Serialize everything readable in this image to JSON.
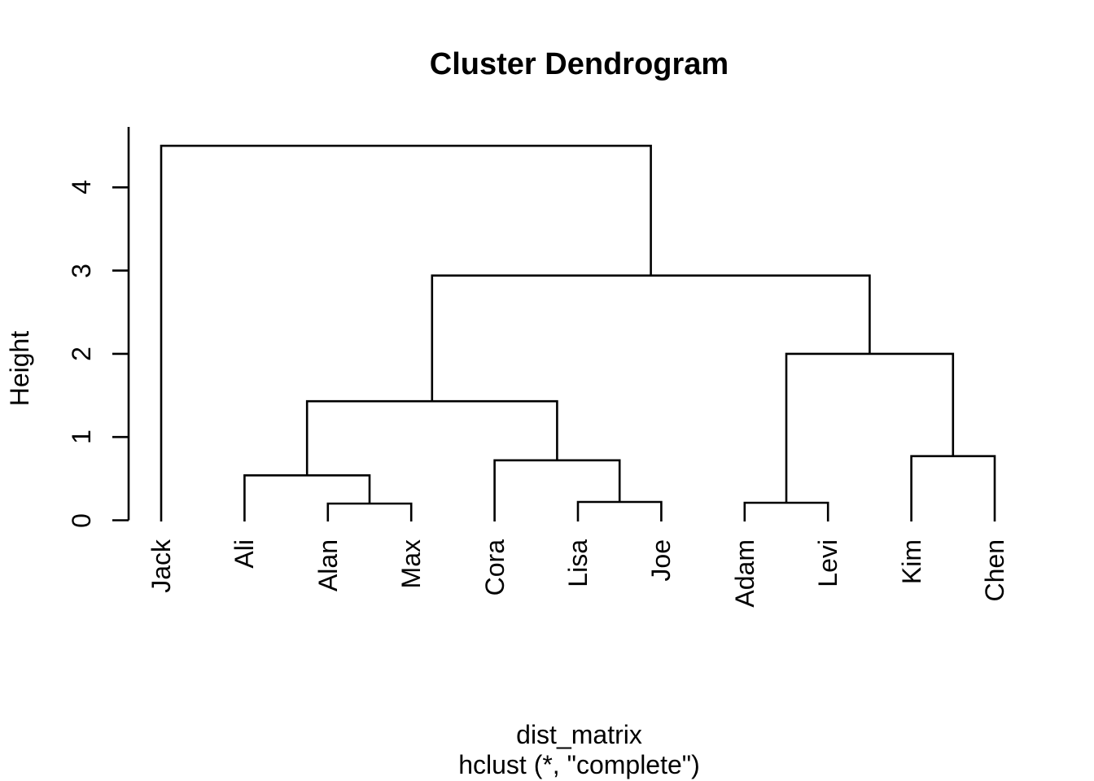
{
  "title": "Cluster Dendrogram",
  "y_axis": {
    "label": "Height",
    "ticks": [
      0,
      1,
      2,
      3,
      4
    ]
  },
  "x_axis": {
    "caption_line1": "dist_matrix",
    "caption_line2": "hclust (*, \"complete\")"
  },
  "chart_data": {
    "type": "dendrogram",
    "title": "Cluster Dendrogram",
    "ylabel": "Height",
    "ylim": [
      0,
      4.73
    ],
    "grid": false,
    "legend": null,
    "linkage": "complete",
    "leaves": [
      "Jack",
      "Ali",
      "Alan",
      "Max",
      "Cora",
      "Lisa",
      "Joe",
      "Adam",
      "Levi",
      "Kim",
      "Chen"
    ],
    "merges": [
      {
        "id": "m1",
        "a": "Alan",
        "b": "Max",
        "height": 0.2
      },
      {
        "id": "m2",
        "a": "Ali",
        "b": "m1",
        "height": 0.54
      },
      {
        "id": "m3",
        "a": "Lisa",
        "b": "Joe",
        "height": 0.22
      },
      {
        "id": "m4",
        "a": "Cora",
        "b": "m3",
        "height": 0.72
      },
      {
        "id": "m5",
        "a": "m2",
        "b": "m4",
        "height": 1.43
      },
      {
        "id": "m6",
        "a": "Adam",
        "b": "Levi",
        "height": 0.21
      },
      {
        "id": "m7",
        "a": "Kim",
        "b": "Chen",
        "height": 0.77
      },
      {
        "id": "m8",
        "a": "m6",
        "b": "m7",
        "height": 2.0
      },
      {
        "id": "m9",
        "a": "m5",
        "b": "m8",
        "height": 2.94
      },
      {
        "id": "m10",
        "a": "Jack",
        "b": "m9",
        "height": 4.5
      }
    ],
    "colors": {
      "line": "#000000",
      "text": "#000000",
      "background": "#ffffff"
    }
  }
}
